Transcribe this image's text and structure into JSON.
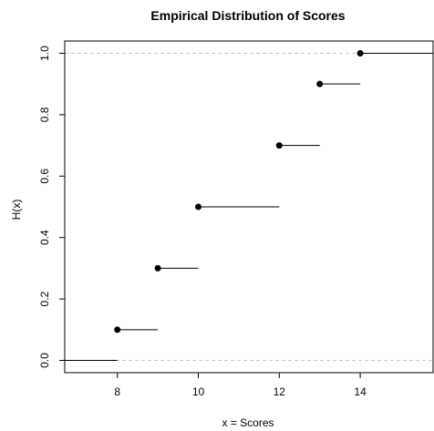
{
  "chart_data": {
    "type": "step",
    "title": "Empirical Distribution of Scores",
    "xlabel": "x = Scores",
    "ylabel": "H(x)",
    "xlim": [
      6.7,
      15.8
    ],
    "ylim": [
      -0.04,
      1.04
    ],
    "xticks": [
      8,
      10,
      12,
      14
    ],
    "xtick_labels": [
      "8",
      "10",
      "12",
      "14"
    ],
    "yticks": [
      0.0,
      0.2,
      0.4,
      0.6,
      0.8,
      1.0
    ],
    "ytick_labels": [
      "0.0",
      "0.2",
      "0.4",
      "0.6",
      "0.8",
      "1.0"
    ],
    "reference_lines": [
      0,
      1
    ],
    "steps": [
      {
        "x_start": 6.7,
        "x_end": 8,
        "y": 0.0,
        "point": false
      },
      {
        "x_start": 8,
        "x_end": 9,
        "y": 0.1,
        "point": true
      },
      {
        "x_start": 9,
        "x_end": 10,
        "y": 0.3,
        "point": true
      },
      {
        "x_start": 10,
        "x_end": 12,
        "y": 0.5,
        "point": true
      },
      {
        "x_start": 12,
        "x_end": 13,
        "y": 0.7,
        "point": true
      },
      {
        "x_start": 13,
        "x_end": 14,
        "y": 0.9,
        "point": true
      },
      {
        "x_start": 14,
        "x_end": 15.8,
        "y": 1.0,
        "point": true
      }
    ]
  }
}
